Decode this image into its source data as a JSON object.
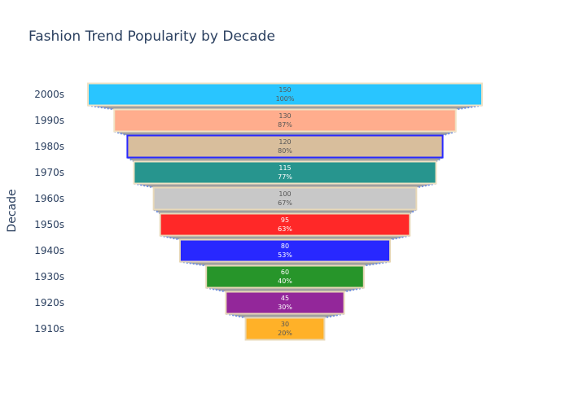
{
  "chart_data": {
    "type": "funnel",
    "title": "Fashion Trend Popularity by Decade",
    "ylabel": "Decade",
    "xlabel": "",
    "categories": [
      "2000s",
      "1990s",
      "1980s",
      "1970s",
      "1960s",
      "1950s",
      "1940s",
      "1930s",
      "1920s",
      "1910s"
    ],
    "values": [
      150,
      130,
      120,
      115,
      100,
      95,
      80,
      60,
      45,
      30
    ],
    "percent_labels": [
      "100%",
      "87%",
      "80%",
      "77%",
      "67%",
      "63%",
      "53%",
      "40%",
      "30%",
      "20%"
    ],
    "colors": [
      "#29c5ff",
      "#ffad8d",
      "#d8be9c",
      "#27958e",
      "#c8c8c8",
      "#ff2828",
      "#2828ff",
      "#27952a",
      "#93279a",
      "#ffb128"
    ],
    "outline_colors": [
      "#f0e2c4",
      "#f0e2c4",
      "#2828ff",
      "#f0e2c4",
      "#e8d8b8",
      "#e8d8b8",
      "#e8d8b8",
      "#e8d8b8",
      "#e8d8b8",
      "#e8d8b8"
    ],
    "label_colors": [
      "#555555",
      "#555555",
      "#555555",
      "#ffffff",
      "#555555",
      "#ffffff",
      "#ffffff",
      "#ffffff",
      "#ffffff",
      "#555555"
    ],
    "connector": {
      "fill": "#a0a0a0",
      "line_color": "#6f8fe0",
      "line_style": "dotted"
    },
    "legend": "none",
    "grid": false
  }
}
